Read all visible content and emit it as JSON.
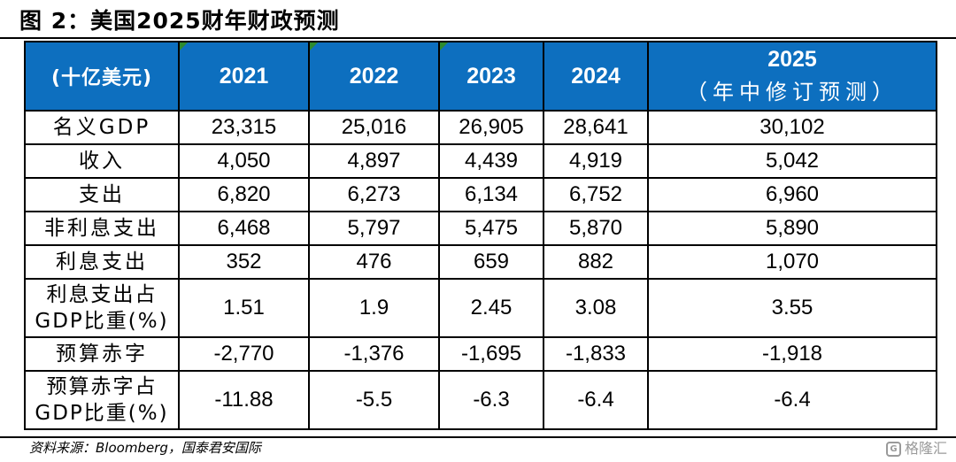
{
  "figure_title": "图 2：美国2025财年财政预测",
  "table": {
    "header": {
      "unit": "(十亿美元)",
      "years": [
        "2021",
        "2022",
        "2023",
        "2024"
      ],
      "last_year": "2025",
      "last_year_note": "（年中修订预测）"
    },
    "rows": [
      {
        "label": "名义GDP",
        "values": [
          "23,315",
          "25,016",
          "26,905",
          "28,641",
          "30,102"
        ]
      },
      {
        "label": "收入",
        "values": [
          "4,050",
          "4,897",
          "4,439",
          "4,919",
          "5,042"
        ]
      },
      {
        "label": "支出",
        "values": [
          "6,820",
          "6,273",
          "6,134",
          "6,752",
          "6,960"
        ]
      },
      {
        "label": "非利息支出",
        "values": [
          "6,468",
          "5,797",
          "5,475",
          "5,870",
          "5,890"
        ]
      },
      {
        "label": "利息支出",
        "values": [
          "352",
          "476",
          "659",
          "882",
          "1,070"
        ]
      },
      {
        "label": "利息支出占GDP比重(%)",
        "values": [
          "1.51",
          "1.9",
          "2.45",
          "3.08",
          "3.55"
        ]
      },
      {
        "label": "预算赤字",
        "values": [
          "-2,770",
          "-1,376",
          "-1,695",
          "-1,833",
          "-1,918"
        ]
      },
      {
        "label": "预算赤字占GDP比重(%)",
        "values": [
          "-11.88",
          "-5.5",
          "-6.3",
          "-6.4",
          "-6.4"
        ]
      }
    ]
  },
  "source": "资料来源：Bloomberg，国泰君安国际",
  "watermark": "格隆汇",
  "colors": {
    "header_bg": "#0d6fbf",
    "header_text": "#ffffff",
    "corner_mark": "#2e8b2e"
  }
}
